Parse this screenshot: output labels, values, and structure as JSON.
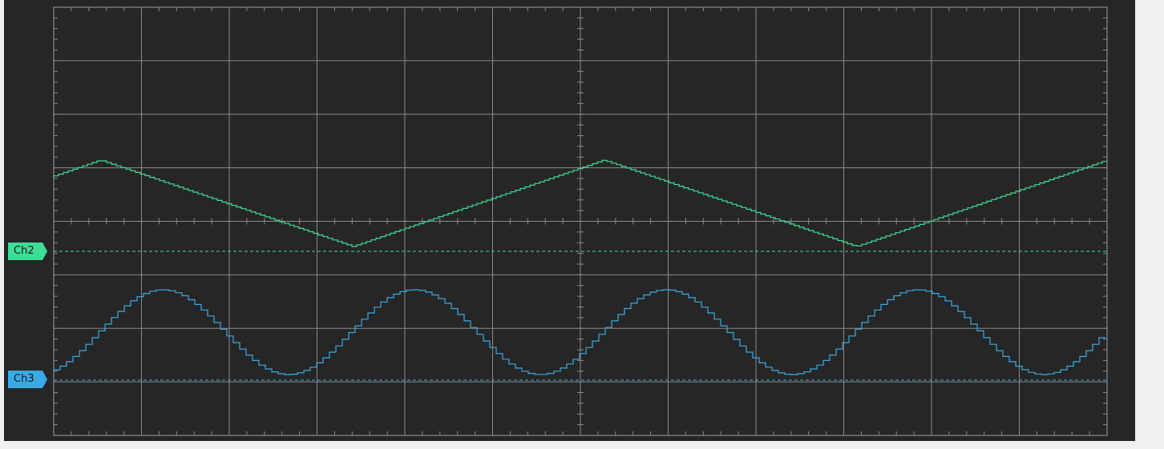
{
  "channels": [
    {
      "id": "ch2",
      "label": "Ch2",
      "color": "#3ddc97",
      "waveform": "triangle"
    },
    {
      "id": "ch3",
      "label": "Ch3",
      "color": "#3aa9e4",
      "waveform": "stepped-sine"
    }
  ],
  "grid": {
    "major_color": "#8a8a8a",
    "background": "#262626",
    "divisions_x": 12,
    "divisions_y": 8
  }
}
